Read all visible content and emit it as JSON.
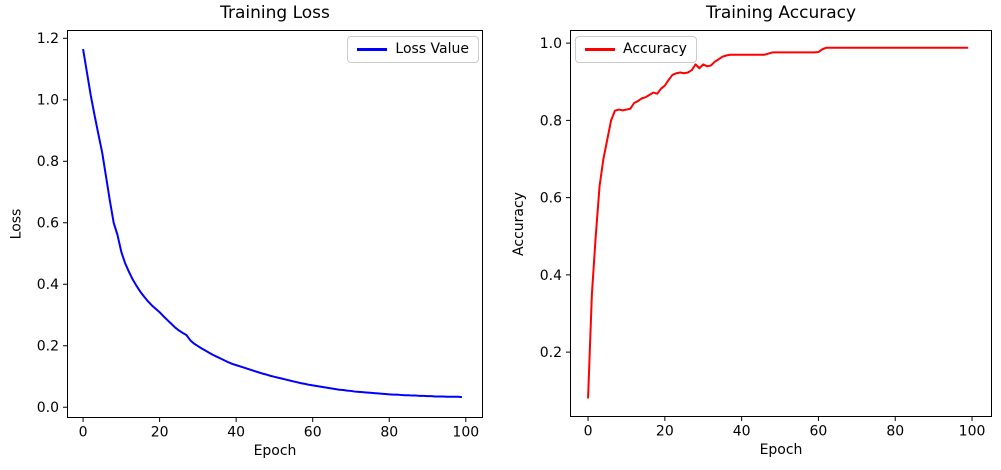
{
  "chart_data": [
    {
      "type": "line",
      "title": "Training Loss",
      "xlabel": "Epoch",
      "ylabel": "Loss",
      "legend_label": "Loss Value",
      "legend_position": "upper right",
      "line_color": "#0000ff",
      "grid": false,
      "xlim": [
        -4.2,
        104.5
      ],
      "ylim": [
        -0.035,
        1.227
      ],
      "xticks": [
        0,
        20,
        40,
        60,
        80,
        100
      ],
      "xtick_labels": [
        "0",
        "20",
        "40",
        "60",
        "80",
        "100"
      ],
      "yticks": [
        0.0,
        0.2,
        0.4,
        0.6,
        0.8,
        1.0,
        1.2
      ],
      "ytick_labels": [
        "0.0",
        "0.2",
        "0.4",
        "0.6",
        "0.8",
        "1.0",
        "1.2"
      ],
      "x": [
        0,
        1,
        2,
        3,
        4,
        5,
        6,
        7,
        8,
        9,
        10,
        11,
        12,
        13,
        14,
        15,
        16,
        17,
        18,
        19,
        20,
        21,
        22,
        23,
        24,
        25,
        26,
        27,
        28,
        29,
        30,
        31,
        32,
        33,
        34,
        35,
        36,
        37,
        38,
        39,
        40,
        41,
        42,
        43,
        44,
        45,
        46,
        47,
        48,
        49,
        50,
        51,
        52,
        53,
        54,
        55,
        56,
        57,
        58,
        59,
        60,
        61,
        62,
        63,
        64,
        65,
        66,
        67,
        68,
        69,
        70,
        71,
        72,
        73,
        74,
        75,
        76,
        77,
        78,
        79,
        80,
        81,
        82,
        83,
        84,
        85,
        86,
        87,
        88,
        89,
        90,
        91,
        92,
        93,
        94,
        95,
        96,
        97,
        98,
        99
      ],
      "y": [
        1.165,
        1.09,
        1.015,
        0.95,
        0.888,
        0.828,
        0.75,
        0.672,
        0.6,
        0.56,
        0.505,
        0.468,
        0.44,
        0.415,
        0.394,
        0.375,
        0.359,
        0.344,
        0.331,
        0.32,
        0.309,
        0.296,
        0.284,
        0.272,
        0.26,
        0.25,
        0.242,
        0.235,
        0.218,
        0.207,
        0.199,
        0.191,
        0.184,
        0.177,
        0.17,
        0.164,
        0.158,
        0.152,
        0.146,
        0.141,
        0.137,
        0.133,
        0.129,
        0.125,
        0.121,
        0.117,
        0.113,
        0.109,
        0.106,
        0.102,
        0.099,
        0.096,
        0.093,
        0.09,
        0.087,
        0.084,
        0.081,
        0.078,
        0.076,
        0.073,
        0.071,
        0.069,
        0.067,
        0.065,
        0.063,
        0.061,
        0.059,
        0.057,
        0.056,
        0.054,
        0.053,
        0.051,
        0.05,
        0.049,
        0.048,
        0.047,
        0.046,
        0.045,
        0.044,
        0.043,
        0.042,
        0.041,
        0.041,
        0.04,
        0.039,
        0.039,
        0.038,
        0.038,
        0.037,
        0.037,
        0.036,
        0.036,
        0.035,
        0.035,
        0.035,
        0.034,
        0.034,
        0.034,
        0.034,
        0.033
      ]
    },
    {
      "type": "line",
      "title": "Training Accuracy",
      "xlabel": "Epoch",
      "ylabel": "Accuracy",
      "legend_label": "Accuracy",
      "legend_position": "upper left",
      "line_color": "#ff0000",
      "grid": false,
      "xlim": [
        -4.7,
        105.2
      ],
      "ylim": [
        0.032,
        1.034
      ],
      "xticks": [
        0,
        20,
        40,
        60,
        80,
        100
      ],
      "xtick_labels": [
        "0",
        "20",
        "40",
        "60",
        "80",
        "100"
      ],
      "yticks": [
        0.2,
        0.4,
        0.6,
        0.8,
        1.0
      ],
      "ytick_labels": [
        "0.2",
        "0.4",
        "0.6",
        "0.8",
        "1.0"
      ],
      "x": [
        0,
        1,
        2,
        3,
        4,
        5,
        6,
        7,
        8,
        9,
        10,
        11,
        12,
        13,
        14,
        15,
        16,
        17,
        18,
        19,
        20,
        21,
        22,
        23,
        24,
        25,
        26,
        27,
        28,
        29,
        30,
        31,
        32,
        33,
        34,
        35,
        36,
        37,
        38,
        39,
        40,
        41,
        42,
        43,
        44,
        45,
        46,
        47,
        48,
        49,
        50,
        51,
        52,
        53,
        54,
        55,
        56,
        57,
        58,
        59,
        60,
        61,
        62,
        63,
        64,
        65,
        66,
        67,
        68,
        69,
        70,
        71,
        72,
        73,
        74,
        75,
        76,
        77,
        78,
        79,
        80,
        81,
        82,
        83,
        84,
        85,
        86,
        87,
        88,
        89,
        90,
        91,
        92,
        93,
        94,
        95,
        96,
        97,
        98,
        99
      ],
      "y": [
        0.08,
        0.35,
        0.5,
        0.63,
        0.7,
        0.75,
        0.8,
        0.825,
        0.828,
        0.826,
        0.828,
        0.83,
        0.845,
        0.85,
        0.857,
        0.86,
        0.866,
        0.872,
        0.869,
        0.882,
        0.89,
        0.905,
        0.918,
        0.922,
        0.924,
        0.922,
        0.924,
        0.93,
        0.945,
        0.935,
        0.945,
        0.94,
        0.942,
        0.952,
        0.958,
        0.965,
        0.968,
        0.97,
        0.97,
        0.97,
        0.97,
        0.97,
        0.97,
        0.97,
        0.97,
        0.97,
        0.97,
        0.973,
        0.976,
        0.976,
        0.976,
        0.976,
        0.976,
        0.976,
        0.976,
        0.976,
        0.976,
        0.976,
        0.976,
        0.976,
        0.977,
        0.984,
        0.988,
        0.988,
        0.988,
        0.988,
        0.988,
        0.988,
        0.988,
        0.988,
        0.988,
        0.988,
        0.988,
        0.988,
        0.988,
        0.988,
        0.988,
        0.988,
        0.988,
        0.988,
        0.988,
        0.988,
        0.988,
        0.988,
        0.988,
        0.988,
        0.988,
        0.988,
        0.988,
        0.988,
        0.988,
        0.988,
        0.988,
        0.988,
        0.988,
        0.988,
        0.988,
        0.988,
        0.988,
        0.988
      ]
    }
  ]
}
